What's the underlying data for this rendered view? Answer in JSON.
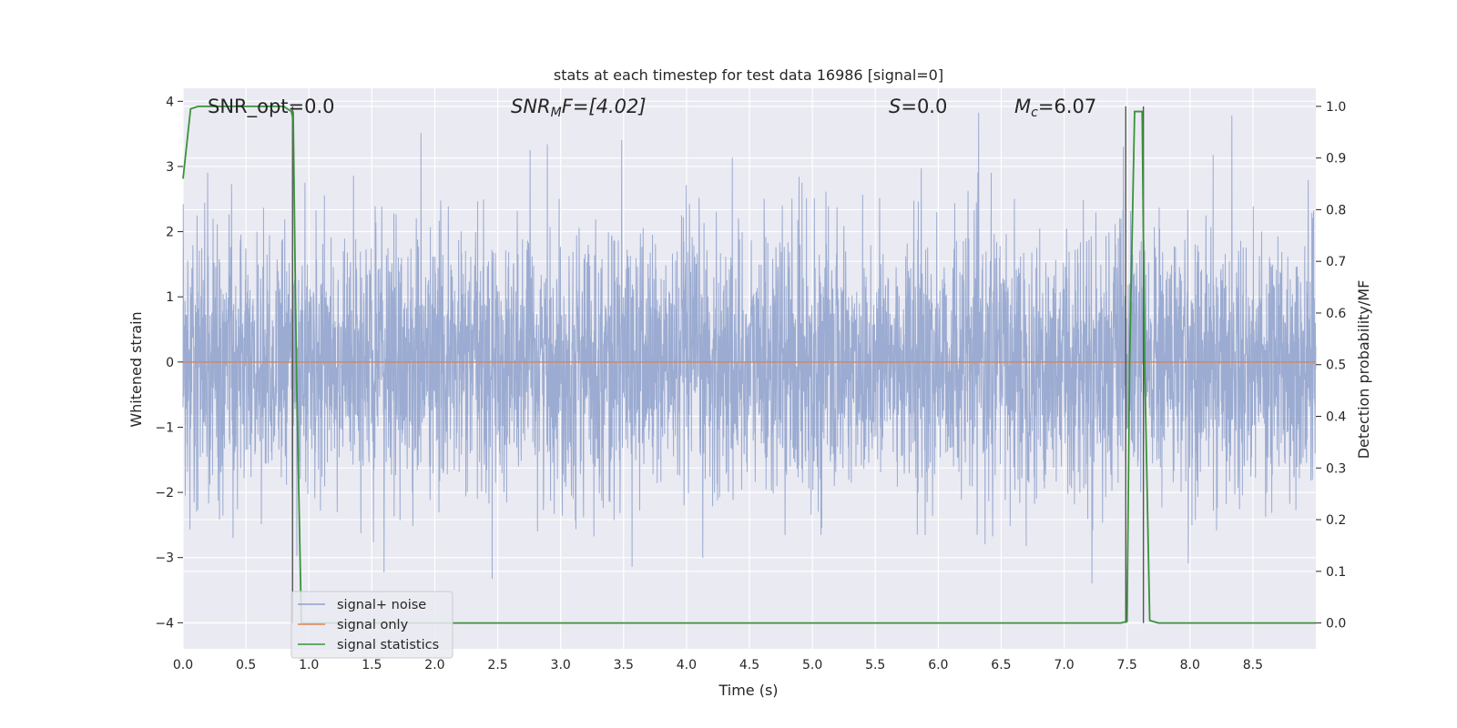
{
  "chart_data": {
    "type": "line",
    "title": "stats at each timestep for test data 16986 [signal=0]",
    "xlabel": "Time (s)",
    "ylabel": "Whitened strain",
    "ylabel_right": "Detection probability/MF",
    "xlim": [
      0.0,
      9.0
    ],
    "ylim": [
      -4.4,
      4.2
    ],
    "ylim_right": [
      -0.05,
      1.035
    ],
    "x_ticks": [
      "0.0",
      "0.5",
      "1.0",
      "1.5",
      "2.0",
      "2.5",
      "3.0",
      "3.5",
      "4.0",
      "4.5",
      "5.0",
      "5.5",
      "6.0",
      "6.5",
      "7.0",
      "7.5",
      "8.0",
      "8.5"
    ],
    "y_ticks": [
      "4",
      "3",
      "2",
      "1",
      "0",
      "−1",
      "−2",
      "−3",
      "−4"
    ],
    "y_ticks_right": [
      "1.0",
      "0.9",
      "0.8",
      "0.7",
      "0.6",
      "0.5",
      "0.4",
      "0.3",
      "0.2",
      "0.1",
      "0.0"
    ],
    "grid": true,
    "legend_position": "bottom-left",
    "annotations": {
      "snr_opt": "SNR_opt=0.0",
      "snr_mf_base": "SNR",
      "snr_mf_sub": "M",
      "snr_mf_rest": "F=[4.02]",
      "s_var": "S",
      "s_rest": "=0.0",
      "mc_base": "M",
      "mc_sub": "c",
      "mc_rest": "=6.07"
    },
    "series": [
      {
        "name": "signal+ noise",
        "color": "#8da0cb",
        "description_noise_std": 1.0,
        "axis": "left"
      },
      {
        "name": "signal only",
        "color": "#dd8452",
        "constant_value": 0.0,
        "axis": "left"
      },
      {
        "name": "signal statistics",
        "color": "#3a923a",
        "axis": "right",
        "points": [
          [
            0.0,
            0.86
          ],
          [
            0.06,
            0.995
          ],
          [
            0.12,
            1.0
          ],
          [
            0.3,
            1.0
          ],
          [
            0.6,
            1.0
          ],
          [
            0.8,
            1.0
          ],
          [
            0.86,
            0.99
          ],
          [
            0.87,
            0.98
          ],
          [
            0.875,
            0.99
          ],
          [
            0.9,
            0.5
          ],
          [
            0.94,
            0.0
          ],
          [
            1.0,
            0.0
          ],
          [
            7.45,
            0.0
          ],
          [
            7.5,
            0.003
          ],
          [
            7.52,
            0.5
          ],
          [
            7.56,
            0.99
          ],
          [
            7.62,
            0.99
          ],
          [
            7.64,
            0.5
          ],
          [
            7.68,
            0.005
          ],
          [
            7.75,
            0.0
          ],
          [
            9.0,
            0.0
          ]
        ]
      }
    ],
    "vertical_markers": [
      0.87,
      7.49,
      7.63
    ]
  }
}
